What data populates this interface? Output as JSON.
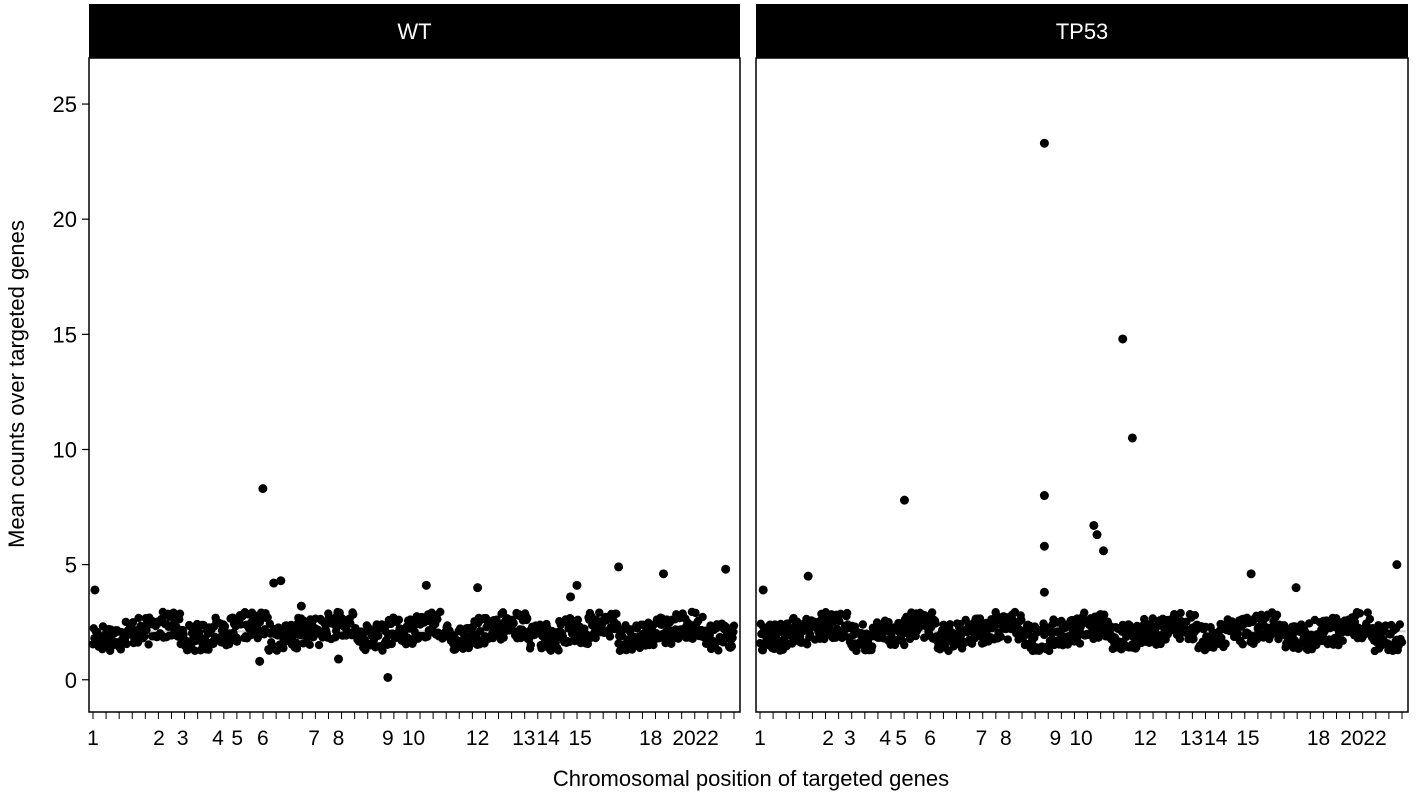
{
  "chart_data": {
    "type": "scatter",
    "facet_by": "genotype",
    "xlabel": "Chromosomal position of targeted genes",
    "ylabel": "Mean counts over targeted genes",
    "ylim": [
      -1.4,
      27
    ],
    "y_ticks": [
      0,
      5,
      10,
      15,
      20,
      25
    ],
    "grid": false,
    "legend": "none",
    "colors": {
      "points": "#000000",
      "strip_bg": "#000000",
      "strip_text": "#ffffff",
      "ref_line": "#cccccc"
    },
    "x_chromosome_labels": [
      "1",
      "2",
      "3",
      "4",
      "5",
      "6",
      "7",
      "8",
      "9",
      "10",
      "12",
      "13",
      "14",
      "15",
      "18",
      "20",
      "22"
    ],
    "reference_line_y": 2.1,
    "typical_range": [
      1.0,
      3.3
    ],
    "panels": [
      {
        "title": "WT",
        "label_positions": [
          0,
          0.103,
          0.14,
          0.195,
          0.225,
          0.265,
          0.345,
          0.383,
          0.46,
          0.5,
          0.6,
          0.672,
          0.71,
          0.76,
          0.87,
          0.922,
          0.958
        ],
        "reference_line_y": 2.1,
        "outliers": [
          {
            "x": 0.003,
            "y": 3.9
          },
          {
            "x": 0.265,
            "y": 8.3
          },
          {
            "x": 0.282,
            "y": 4.2
          },
          {
            "x": 0.293,
            "y": 4.3
          },
          {
            "x": 0.26,
            "y": 0.8
          },
          {
            "x": 0.325,
            "y": 3.2
          },
          {
            "x": 0.383,
            "y": 0.9
          },
          {
            "x": 0.46,
            "y": 0.1
          },
          {
            "x": 0.52,
            "y": 4.1
          },
          {
            "x": 0.6,
            "y": 4.0
          },
          {
            "x": 0.745,
            "y": 3.6
          },
          {
            "x": 0.755,
            "y": 4.1
          },
          {
            "x": 0.82,
            "y": 4.9
          },
          {
            "x": 0.89,
            "y": 4.6
          },
          {
            "x": 0.987,
            "y": 4.8
          }
        ]
      },
      {
        "title": "TP53",
        "label_positions": [
          0,
          0.106,
          0.14,
          0.195,
          0.22,
          0.265,
          0.345,
          0.383,
          0.46,
          0.5,
          0.6,
          0.672,
          0.71,
          0.76,
          0.87,
          0.922,
          0.958
        ],
        "reference_line_y": 2.1,
        "outliers": [
          {
            "x": 0.005,
            "y": 3.9
          },
          {
            "x": 0.075,
            "y": 4.5
          },
          {
            "x": 0.225,
            "y": 7.8
          },
          {
            "x": 0.443,
            "y": 23.3
          },
          {
            "x": 0.443,
            "y": 8.0
          },
          {
            "x": 0.443,
            "y": 5.8
          },
          {
            "x": 0.443,
            "y": 3.8
          },
          {
            "x": 0.52,
            "y": 6.7
          },
          {
            "x": 0.525,
            "y": 6.3
          },
          {
            "x": 0.535,
            "y": 5.6
          },
          {
            "x": 0.565,
            "y": 14.8
          },
          {
            "x": 0.58,
            "y": 10.5
          },
          {
            "x": 0.765,
            "y": 4.6
          },
          {
            "x": 0.835,
            "y": 4.0
          },
          {
            "x": 0.992,
            "y": 5.0
          }
        ]
      }
    ]
  }
}
